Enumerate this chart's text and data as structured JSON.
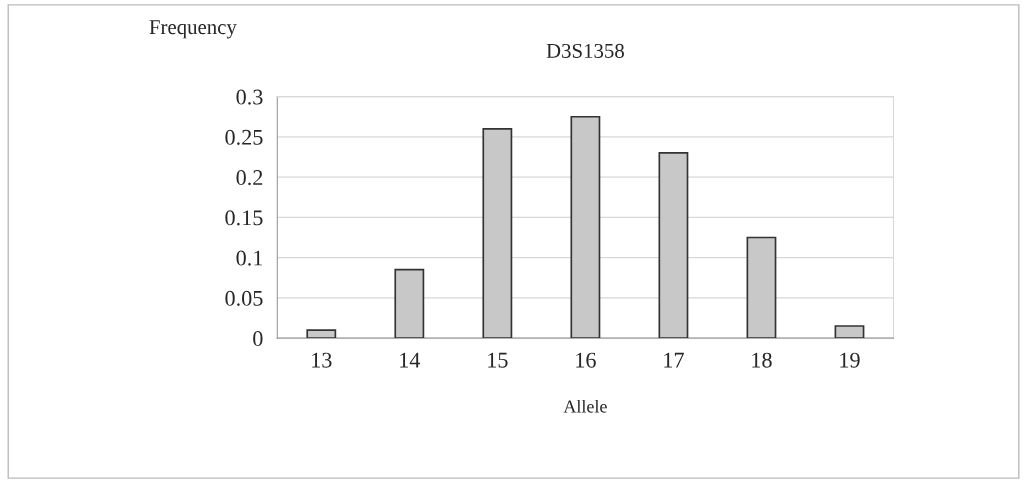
{
  "chart_data": {
    "type": "bar",
    "title": "D3S1358",
    "xlabel": "Allele",
    "ylabel": "Frequency",
    "categories": [
      "13",
      "14",
      "15",
      "16",
      "17",
      "18",
      "19"
    ],
    "values": [
      0.01,
      0.085,
      0.26,
      0.275,
      0.23,
      0.125,
      0.015
    ],
    "color": "#c8c8c8",
    "ylim": [
      0,
      0.3
    ],
    "yticks": [
      0,
      0.05,
      0.1,
      0.15,
      0.2,
      0.25,
      0.3
    ],
    "grid": "y"
  }
}
